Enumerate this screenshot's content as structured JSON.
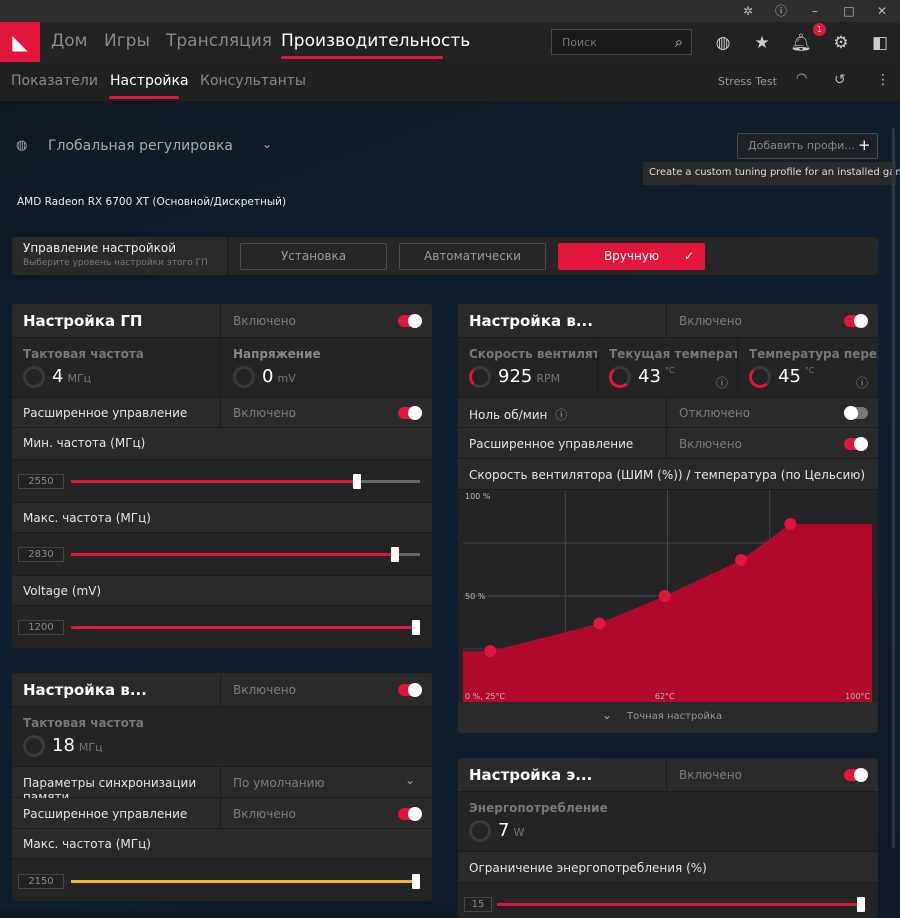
{
  "titlebar": {
    "icons": [
      "bug-icon",
      "help-icon",
      "minimize-icon",
      "maximize-icon",
      "close-icon"
    ]
  },
  "nav": {
    "items": [
      "Дом",
      "Игры",
      "Трансляция",
      "Производительность"
    ],
    "active": "Производительность",
    "search_placeholder": "Поиск",
    "notification_count": "1"
  },
  "subnav": {
    "items": [
      "Показатели",
      "Настройка",
      "Консультанты"
    ],
    "active": "Настройка",
    "stress_test": "Stress Test"
  },
  "profile": {
    "label": "Глобальная регулировка",
    "add_button": "Добавить профи...",
    "tooltip": "Create a custom tuning profile for an installed game"
  },
  "gpu_name": "AMD Radeon RX 6700 XT (Основной/Дискретный)",
  "tuning_control": {
    "title": "Управление настройкой",
    "subtitle": "Выберите уровень настройки этого ГП",
    "options": [
      "Установка",
      "Автоматически",
      "Вручную"
    ],
    "selected": "Вручную"
  },
  "gpu_tuning": {
    "title": "Настройка ГП",
    "state": "Включено",
    "clock": {
      "label": "Тактовая частота",
      "value": "4",
      "unit": "МГц"
    },
    "voltage": {
      "label": "Напряжение",
      "value": "0",
      "unit": "mV"
    },
    "advanced": {
      "label": "Расширенное управление",
      "state": "Включено"
    },
    "min_freq": {
      "label": "Мин. частота (МГц)",
      "value": "2550",
      "fill_percent": 83
    },
    "max_freq": {
      "label": "Макс. частота (МГц)",
      "value": "2830",
      "fill_percent": 94
    },
    "voltage_slider": {
      "label": "Voltage (mV)",
      "value": "1200",
      "fill_percent": 100
    }
  },
  "vram_tuning": {
    "title": "Настройка в...",
    "state": "Включено",
    "clock": {
      "label": "Тактовая частота",
      "value": "18",
      "unit": "МГц"
    },
    "timing": {
      "label": "Параметры синхронизации памяти",
      "value": "По умолчанию"
    },
    "advanced": {
      "label": "Расширенное управление",
      "state": "Включено"
    },
    "max_freq": {
      "label": "Макс. частота (МГц)",
      "value": "2150",
      "fill_percent": 100,
      "color": "#e8b92e"
    }
  },
  "fan_tuning": {
    "title": "Настройка в...",
    "state": "Включено",
    "fan_speed": {
      "label": "Скорость вентилятора",
      "value": "925",
      "unit": "RPM"
    },
    "current_temp": {
      "label": "Текущая температура",
      "value": "43",
      "unit": "°C"
    },
    "junction_temp": {
      "label": "Температура перехода",
      "value": "45",
      "unit": "°C"
    },
    "zero_rpm": {
      "label": "Ноль об/мин",
      "state": "Отключено"
    },
    "advanced": {
      "label": "Расширенное управление",
      "state": "Включено"
    },
    "curve_title": "Скорость вентилятора (ШИМ (%)) / температура (по Цельсию)",
    "fine_tune": "Точная настройка"
  },
  "chart_data": {
    "type": "area",
    "xlabel": "",
    "ylabel": "",
    "xlim": [
      25,
      100
    ],
    "ylim": [
      0,
      100
    ],
    "tick_labels": {
      "y_top": "100 %",
      "y_mid": "50 %",
      "origin": "0 %, 25°C",
      "x_mid": "62°C",
      "x_max": "100°C"
    },
    "points": [
      [
        30,
        24
      ],
      [
        50,
        37
      ],
      [
        62,
        50
      ],
      [
        76,
        67
      ],
      [
        85,
        84
      ]
    ],
    "grid": true,
    "color": "#b0092c"
  },
  "power_tuning": {
    "title": "Настройка э...",
    "state": "Включено",
    "power": {
      "label": "Энергопотребление",
      "value": "7",
      "unit": "W"
    },
    "limit": {
      "label": "Ограничение энергопотребления (%)",
      "value": "15",
      "fill_percent": 100
    }
  },
  "accent": "#e2153a"
}
